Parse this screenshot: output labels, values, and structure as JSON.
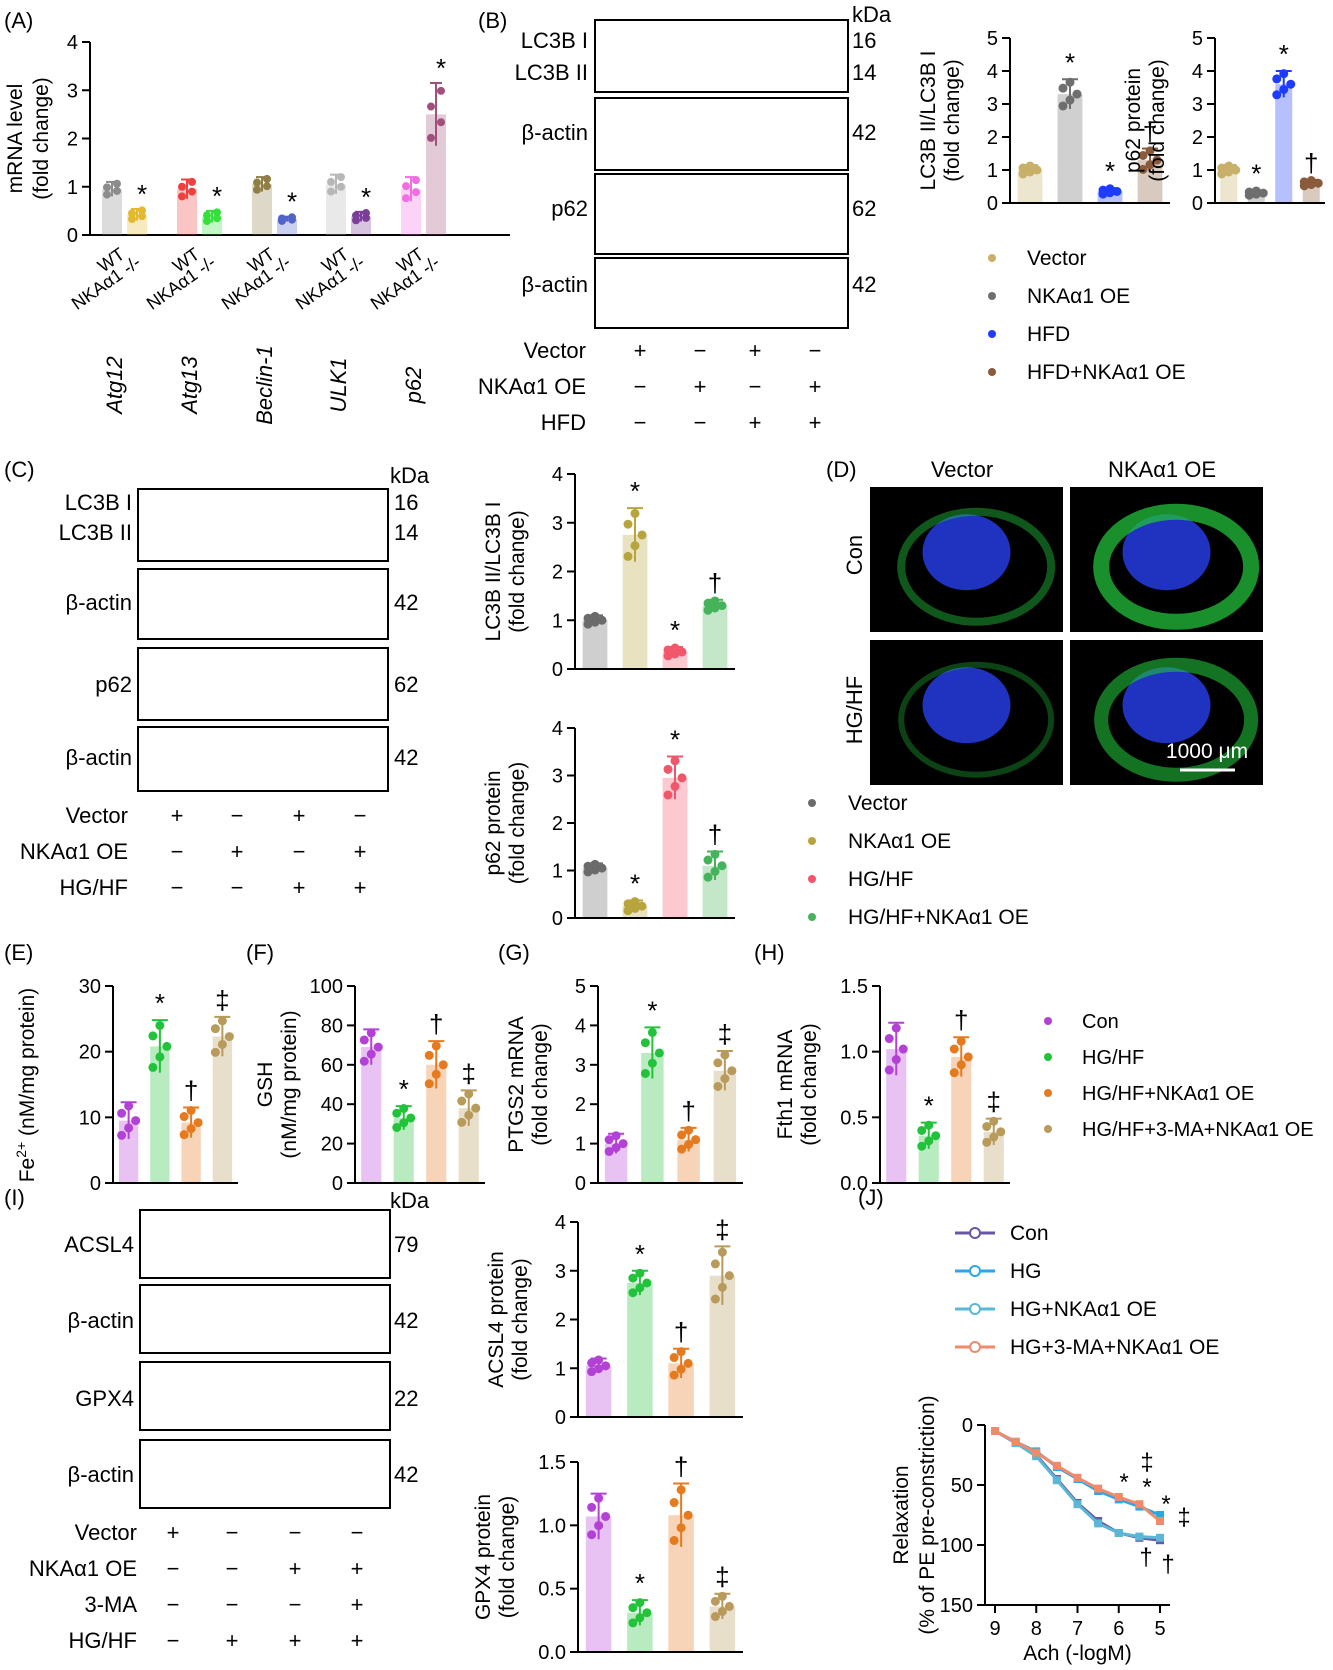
{
  "panels": {
    "A": "(A)",
    "B": "(B)",
    "C": "(C)",
    "D": "(D)",
    "E": "(E)",
    "F": "(F)",
    "G": "(G)",
    "H": "(H)",
    "I": "(I)",
    "J": "(J)"
  },
  "common": {
    "kda": "kDa",
    "plus": "+",
    "minus": "−"
  },
  "colors": {
    "wt": "#7f7f7f",
    "wt_bar": "#d9d9d9",
    "vector": "#c8b06a",
    "oe": "#6e6e6e",
    "hfd": "#1e3cff",
    "hfd_oe": "#8a5a3c",
    "c_vector": "#6b6b6b",
    "c_oe": "#b7a43c",
    "c_hg": "#f2566b",
    "c_hgoe": "#46b35a",
    "con": "#b341d6",
    "hg": "#22c33a",
    "hg_oe": "#e57a1e",
    "hg3ma": "#b89a5a",
    "j_con": "#6a55a6",
    "j_hg": "#2aa6ea",
    "j_hgoe": "#5ab8d6",
    "j_hg3ma": "#f08a6a"
  },
  "panel_a": {
    "chart_data": {
      "type": "bar",
      "ylabel": "mRNA level (fold change)",
      "ylim": [
        0,
        4
      ],
      "yticks": [
        "0",
        "1",
        "2",
        "3",
        "4"
      ],
      "groups": [
        "WT",
        "NKAα1 -/-"
      ],
      "genes": [
        "Atg12",
        "Atg13",
        "Beclin-1",
        "ULK1",
        "p62"
      ],
      "series": [
        {
          "gene": "Atg12",
          "wt": 0.95,
          "ko": 0.42,
          "wt_err": 0.15,
          "ko_err": 0.12,
          "colors": [
            "#8c8c8c",
            "#e3b92f"
          ]
        },
        {
          "gene": "Atg13",
          "wt": 0.95,
          "ko": 0.38,
          "wt_err": 0.2,
          "ko_err": 0.12,
          "colors": [
            "#f03f3f",
            "#35e03b"
          ]
        },
        {
          "gene": "Beclin-1",
          "wt": 1.05,
          "ko": 0.33,
          "wt_err": 0.15,
          "ko_err": 0.05,
          "colors": [
            "#8f7f45",
            "#4f63c9"
          ]
        },
        {
          "gene": "ULK1",
          "wt": 1.05,
          "ko": 0.38,
          "wt_err": 0.2,
          "ko_err": 0.1,
          "colors": [
            "#b7b7b7",
            "#7b3f99"
          ]
        },
        {
          "gene": "p62",
          "wt": 0.95,
          "ko": 2.5,
          "wt_err": 0.25,
          "ko_err": 0.65,
          "colors": [
            "#f06ee0",
            "#a0507a"
          ]
        }
      ],
      "sig": "*"
    }
  },
  "panel_b": {
    "blot_labels": [
      "LC3B I",
      "LC3B II",
      "β-actin",
      "p62",
      "β-actin"
    ],
    "kda": [
      "16",
      "14",
      "42",
      "62",
      "42"
    ],
    "conditions": [
      {
        "name": "Vector",
        "signs": [
          "+",
          "−",
          "+",
          "−"
        ]
      },
      {
        "name": "NKAα1 OE",
        "signs": [
          "−",
          "+",
          "−",
          "+"
        ]
      },
      {
        "name": "HFD",
        "signs": [
          "−",
          "−",
          "+",
          "+"
        ]
      }
    ],
    "chart_lc3": {
      "type": "bar",
      "ylabel": "LC3B II/LC3B I (fold change)",
      "ylim": [
        0,
        5
      ],
      "yticks": [
        "0",
        "1",
        "2",
        "3",
        "4",
        "5"
      ],
      "values": [
        1.0,
        3.3,
        0.35,
        1.3
      ],
      "errors": [
        0.15,
        0.45,
        0.1,
        0.35
      ],
      "sig": [
        "",
        "*",
        "*",
        "†"
      ]
    },
    "chart_p62": {
      "type": "bar",
      "ylabel": "p62 protein (fold change)",
      "ylim": [
        0,
        5
      ],
      "yticks": [
        "0",
        "1",
        "2",
        "3",
        "4",
        "5"
      ],
      "values": [
        1.0,
        0.3,
        3.6,
        0.6
      ],
      "errors": [
        0.15,
        0.08,
        0.4,
        0.1
      ],
      "sig": [
        "",
        "*",
        "*",
        "†"
      ]
    },
    "legend": [
      "Vector",
      "NKAα1 OE",
      "HFD",
      "HFD+NKAα1 OE"
    ]
  },
  "panel_c": {
    "blot_labels": [
      "LC3B I",
      "LC3B II",
      "β-actin",
      "p62",
      "β-actin"
    ],
    "kda": [
      "16",
      "14",
      "42",
      "62",
      "42"
    ],
    "conditions": [
      {
        "name": "Vector",
        "signs": [
          "+",
          "−",
          "+",
          "−"
        ]
      },
      {
        "name": "NKAα1 OE",
        "signs": [
          "−",
          "+",
          "−",
          "+"
        ]
      },
      {
        "name": "HG/HF",
        "signs": [
          "−",
          "−",
          "+",
          "+"
        ]
      }
    ],
    "chart_lc3": {
      "type": "bar",
      "ylabel": "LC3B II/LC3B I (fold change)",
      "ylim": [
        0,
        4
      ],
      "yticks": [
        "0",
        "1",
        "2",
        "3",
        "4"
      ],
      "values": [
        1.0,
        2.75,
        0.35,
        1.3
      ],
      "errors": [
        0.1,
        0.55,
        0.1,
        0.12
      ],
      "sig": [
        "",
        "*",
        "*",
        "†"
      ]
    },
    "chart_p62": {
      "type": "bar",
      "ylabel": "p62 protein (fold change)",
      "ylim": [
        0,
        4
      ],
      "yticks": [
        "0",
        "1",
        "2",
        "3",
        "4"
      ],
      "values": [
        1.05,
        0.25,
        2.95,
        1.1
      ],
      "errors": [
        0.1,
        0.12,
        0.45,
        0.3
      ],
      "sig": [
        "",
        "*",
        "*",
        "†"
      ]
    }
  },
  "panel_d": {
    "columns": [
      "Vector",
      "NKAα1 OE"
    ],
    "rows": [
      "Con",
      "HG/HF"
    ],
    "scale": "1000 μm",
    "legend": [
      "Vector",
      "NKAα1 OE",
      "HG/HF",
      "HG/HF+NKAα1 OE"
    ]
  },
  "panel_e": {
    "type": "bar",
    "ylabel_pre": "Fe",
    "ylabel_sup": "2+",
    "ylabel_post": " (nM/mg protein)",
    "ylim": [
      0,
      30
    ],
    "yticks": [
      "0",
      "10",
      "20",
      "30"
    ],
    "values": [
      9.5,
      20.8,
      9.2,
      22.3
    ],
    "errors": [
      2.8,
      4.0,
      2.3,
      3.0
    ],
    "sig": [
      "",
      "*",
      "†",
      "‡"
    ]
  },
  "panel_f": {
    "type": "bar",
    "ylabel": "GSH (nM/mg protein)",
    "ylim": [
      0,
      100
    ],
    "yticks": [
      "0",
      "20",
      "40",
      "60",
      "80",
      "100"
    ],
    "values": [
      69,
      33,
      60,
      38
    ],
    "errors": [
      9,
      6,
      12,
      9
    ],
    "sig": [
      "",
      "*",
      "†",
      "‡"
    ]
  },
  "panel_g": {
    "type": "bar",
    "ylabel": "PTGS2 mRNA (fold change)",
    "ylim": [
      0,
      5
    ],
    "yticks": [
      "0",
      "1",
      "2",
      "3",
      "4",
      "5"
    ],
    "values": [
      1.0,
      3.3,
      1.1,
      2.85
    ],
    "errors": [
      0.25,
      0.65,
      0.3,
      0.5
    ],
    "sig": [
      "",
      "*",
      "†",
      "‡"
    ]
  },
  "panel_h": {
    "type": "bar",
    "ylabel": "Fth1 mRNA (fold change)",
    "ylim": [
      0,
      1.5
    ],
    "yticks": [
      "0.0",
      "0.5",
      "1.0",
      "1.5"
    ],
    "values": [
      1.02,
      0.36,
      0.96,
      0.39
    ],
    "errors": [
      0.2,
      0.1,
      0.15,
      0.1
    ],
    "sig": [
      "",
      "*",
      "†",
      "‡"
    ],
    "legend": [
      "Con",
      "HG/HF",
      "HG/HF+NKAα1 OE",
      "HG/HF+3-MA+NKAα1 OE"
    ]
  },
  "panel_i": {
    "blot_labels": [
      "ACSL4",
      "β-actin",
      "GPX4",
      "β-actin"
    ],
    "kda": [
      "79",
      "42",
      "22",
      "42"
    ],
    "conditions": [
      {
        "name": "Vector",
        "signs": [
          "+",
          "−",
          "−",
          "−"
        ]
      },
      {
        "name": "NKAα1 OE",
        "signs": [
          "−",
          "−",
          "+",
          "+"
        ]
      },
      {
        "name": "3-MA",
        "signs": [
          "−",
          "−",
          "−",
          "+"
        ]
      },
      {
        "name": "HG/HF",
        "signs": [
          "−",
          "+",
          "+",
          "+"
        ]
      }
    ],
    "chart_acsl4": {
      "type": "bar",
      "ylabel": "ACSL4 protein (fold change)",
      "ylim": [
        0,
        4
      ],
      "yticks": [
        "0",
        "1",
        "2",
        "3",
        "4"
      ],
      "values": [
        1.05,
        2.75,
        1.1,
        2.9
      ],
      "errors": [
        0.15,
        0.25,
        0.3,
        0.6
      ],
      "sig": [
        "",
        "*",
        "†",
        "‡"
      ]
    },
    "chart_gpx4": {
      "type": "bar",
      "ylabel": "GPX4 protein (fold change)",
      "ylim": [
        0,
        1.5
      ],
      "yticks": [
        "0.0",
        "0.5",
        "1.0",
        "1.5"
      ],
      "values": [
        1.07,
        0.31,
        1.08,
        0.36
      ],
      "errors": [
        0.18,
        0.1,
        0.25,
        0.1
      ],
      "sig": [
        "",
        "*",
        "†",
        "‡"
      ]
    }
  },
  "panel_j": {
    "chart_data": {
      "type": "line",
      "xlabel": "Ach (-logM)",
      "ylabel": "Relaxation (% of PE pre-constriction)",
      "xticks": [
        "9",
        "8",
        "7",
        "6",
        "5"
      ],
      "yticks": [
        "0",
        "50",
        "100",
        "150"
      ],
      "ylim": [
        150,
        0
      ],
      "x": [
        9,
        8.5,
        8,
        7.5,
        7,
        6.5,
        6,
        5.5,
        5
      ],
      "series": [
        {
          "name": "Con",
          "values": [
            5,
            15,
            25,
            45,
            65,
            80,
            90,
            94,
            96
          ]
        },
        {
          "name": "HG",
          "values": [
            5,
            14,
            22,
            35,
            45,
            55,
            62,
            68,
            75
          ]
        },
        {
          "name": "HG+NKAα1 OE",
          "values": [
            5,
            15,
            26,
            46,
            66,
            82,
            90,
            93,
            94
          ]
        },
        {
          "name": "HG+3-MA+NKAα1 OE",
          "values": [
            5,
            14,
            23,
            34,
            44,
            53,
            60,
            66,
            80
          ]
        }
      ],
      "sig_labels": [
        "*",
        "‡",
        "*",
        "*",
        "‡",
        "†",
        "†"
      ]
    }
  }
}
